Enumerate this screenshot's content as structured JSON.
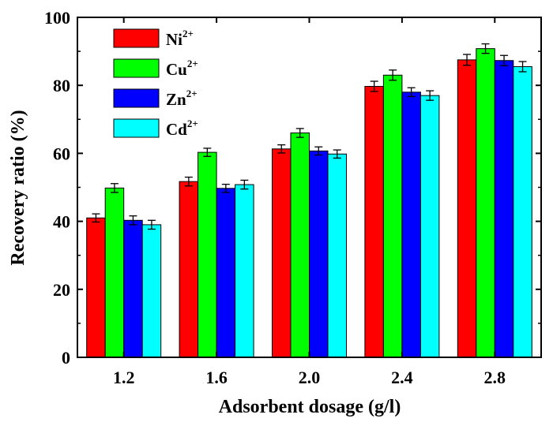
{
  "chart_data": {
    "type": "bar",
    "title": "",
    "xlabel": "Adsorbent dosage (g/l)",
    "ylabel": "Recovery ratio (%)",
    "categories": [
      "1.2",
      "1.6",
      "2.0",
      "2.4",
      "2.8"
    ],
    "ylim": [
      0,
      100
    ],
    "yticks": [
      "0",
      "20",
      "40",
      "60",
      "80",
      "100"
    ],
    "grid": false,
    "legend_position": "top-left",
    "error_bars": true,
    "series": [
      {
        "name": "Ni",
        "superscript": "2+",
        "color": "#ff0000",
        "values": [
          41,
          51.7,
          61.3,
          79.7,
          87.5
        ],
        "errors": [
          1.2,
          1.3,
          1.2,
          1.5,
          1.6
        ]
      },
      {
        "name": "Cu",
        "superscript": "2+",
        "color": "#00ff00",
        "values": [
          49.8,
          60.3,
          66,
          83,
          90.8
        ],
        "errors": [
          1.3,
          1.2,
          1.3,
          1.5,
          1.4
        ]
      },
      {
        "name": "Zn",
        "superscript": "2+",
        "color": "#0000ff",
        "values": [
          40.3,
          49.7,
          60.7,
          78,
          87.3
        ],
        "errors": [
          1.3,
          1.2,
          1.2,
          1.3,
          1.5
        ]
      },
      {
        "name": "Cd",
        "superscript": "2+",
        "color": "#00ffff",
        "values": [
          39,
          50.8,
          59.8,
          77,
          85.5
        ],
        "errors": [
          1.3,
          1.3,
          1.2,
          1.4,
          1.5
        ]
      }
    ]
  }
}
